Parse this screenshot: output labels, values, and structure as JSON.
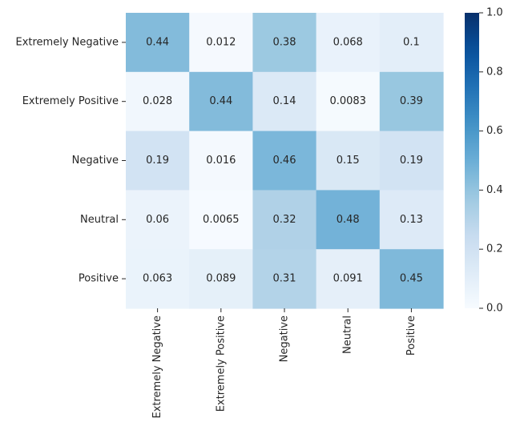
{
  "chart_data": {
    "type": "heatmap",
    "row_labels": [
      "Extremely Negative",
      "Extremely Positive",
      "Negative",
      "Neutral",
      "Positive"
    ],
    "col_labels": [
      "Extremely Negative",
      "Extremely Positive",
      "Negative",
      "Neutral",
      "Positive"
    ],
    "values": [
      [
        0.44,
        0.012,
        0.38,
        0.068,
        0.1
      ],
      [
        0.028,
        0.44,
        0.14,
        0.0083,
        0.39
      ],
      [
        0.19,
        0.016,
        0.46,
        0.15,
        0.19
      ],
      [
        0.06,
        0.0065,
        0.32,
        0.48,
        0.13
      ],
      [
        0.063,
        0.089,
        0.31,
        0.091,
        0.45
      ]
    ],
    "cell_labels": [
      [
        "0.44",
        "0.012",
        "0.38",
        "0.068",
        "0.1"
      ],
      [
        "0.028",
        "0.44",
        "0.14",
        "0.0083",
        "0.39"
      ],
      [
        "0.19",
        "0.016",
        "0.46",
        "0.15",
        "0.19"
      ],
      [
        "0.06",
        "0.0065",
        "0.32",
        "0.48",
        "0.13"
      ],
      [
        "0.063",
        "0.089",
        "0.31",
        "0.091",
        "0.45"
      ]
    ],
    "vmin": 0,
    "vmax": 1,
    "colormap": "Blues",
    "colorbar_ticks": [
      0.0,
      0.2,
      0.4,
      0.6,
      0.8,
      1.0
    ],
    "colorbar_tick_labels": [
      "0.0",
      "0.2",
      "0.4",
      "0.6",
      "0.8",
      "1.0"
    ],
    "colorbar_position": "right",
    "text_color": "#262626"
  }
}
